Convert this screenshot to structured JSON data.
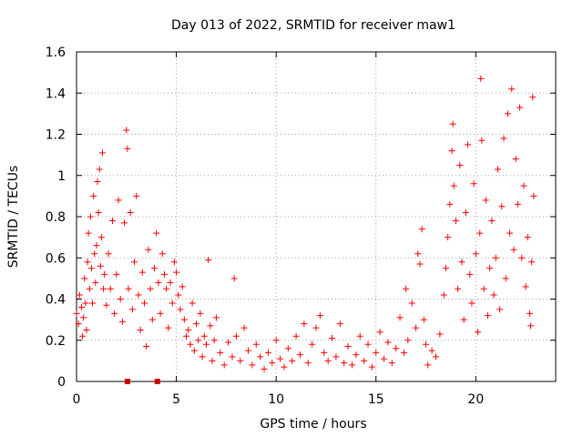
{
  "chart_data": {
    "type": "scatter",
    "title": "Day 013 of 2022, SRMTID for receiver maw1",
    "xlabel": "GPS time / hours",
    "ylabel": "SRMTID / TECUs",
    "xlim": [
      0,
      24
    ],
    "ylim": [
      0,
      1.6
    ],
    "xticks": [
      0,
      5,
      10,
      15,
      20
    ],
    "xtick_labels": [
      "0",
      "5",
      "10",
      "15",
      "20"
    ],
    "yticks": [
      0,
      0.2,
      0.4,
      0.6,
      0.8,
      1,
      1.2,
      1.4,
      1.6
    ],
    "ytick_labels": [
      "0",
      "0.2",
      "0.4",
      "0.6",
      "0.8",
      "1",
      "1.2",
      "1.4",
      "1.6"
    ],
    "grid": true,
    "series": [
      {
        "name": "SRMTID",
        "marker": "plus",
        "color": "#ff0000",
        "points": [
          [
            0.0,
            0.33
          ],
          [
            0.1,
            0.28
          ],
          [
            0.15,
            0.42
          ],
          [
            0.25,
            0.36
          ],
          [
            0.3,
            0.22
          ],
          [
            0.35,
            0.31
          ],
          [
            0.4,
            0.5
          ],
          [
            0.45,
            0.38
          ],
          [
            0.5,
            0.25
          ],
          [
            0.55,
            0.58
          ],
          [
            0.6,
            0.72
          ],
          [
            0.65,
            0.45
          ],
          [
            0.7,
            0.8
          ],
          [
            0.75,
            0.55
          ],
          [
            0.8,
            0.38
          ],
          [
            0.85,
            0.9
          ],
          [
            0.9,
            0.62
          ],
          [
            0.95,
            0.48
          ],
          [
            1.0,
            0.66
          ],
          [
            1.05,
            0.97
          ],
          [
            1.1,
            0.82
          ],
          [
            1.15,
            1.03
          ],
          [
            1.2,
            0.56
          ],
          [
            1.25,
            0.7
          ],
          [
            1.3,
            1.11
          ],
          [
            1.35,
            0.45
          ],
          [
            1.4,
            0.52
          ],
          [
            1.5,
            0.37
          ],
          [
            1.6,
            0.62
          ],
          [
            1.7,
            0.45
          ],
          [
            1.8,
            0.78
          ],
          [
            1.9,
            0.33
          ],
          [
            2.0,
            0.52
          ],
          [
            2.1,
            0.88
          ],
          [
            2.2,
            0.4
          ],
          [
            2.3,
            0.29
          ],
          [
            2.4,
            0.77
          ],
          [
            2.5,
            1.22
          ],
          [
            2.55,
            1.13
          ],
          [
            2.6,
            0.45
          ],
          [
            2.7,
            0.82
          ],
          [
            2.8,
            0.35
          ],
          [
            2.9,
            0.58
          ],
          [
            3.0,
            0.9
          ],
          [
            3.1,
            0.42
          ],
          [
            3.2,
            0.25
          ],
          [
            3.3,
            0.53
          ],
          [
            3.4,
            0.38
          ],
          [
            3.5,
            0.17
          ],
          [
            3.6,
            0.64
          ],
          [
            3.7,
            0.45
          ],
          [
            3.8,
            0.3
          ],
          [
            3.9,
            0.55
          ],
          [
            4.0,
            0.72
          ],
          [
            4.1,
            0.48
          ],
          [
            4.2,
            0.33
          ],
          [
            4.3,
            0.62
          ],
          [
            4.4,
            0.52
          ],
          [
            4.5,
            0.45
          ],
          [
            4.6,
            0.26
          ],
          [
            4.7,
            0.48
          ],
          [
            4.8,
            0.38
          ],
          [
            4.9,
            0.58
          ],
          [
            5.0,
            0.53
          ],
          [
            5.1,
            0.42
          ],
          [
            5.2,
            0.35
          ],
          [
            5.3,
            0.46
          ],
          [
            5.4,
            0.3
          ],
          [
            5.5,
            0.22
          ],
          [
            5.6,
            0.25
          ],
          [
            5.7,
            0.18
          ],
          [
            5.8,
            0.38
          ],
          [
            5.9,
            0.15
          ],
          [
            6.0,
            0.28
          ],
          [
            6.1,
            0.2
          ],
          [
            6.2,
            0.33
          ],
          [
            6.3,
            0.12
          ],
          [
            6.4,
            0.22
          ],
          [
            6.5,
            0.18
          ],
          [
            6.6,
            0.59
          ],
          [
            6.7,
            0.27
          ],
          [
            6.8,
            0.1
          ],
          [
            6.9,
            0.2
          ],
          [
            7.0,
            0.31
          ],
          [
            7.2,
            0.14
          ],
          [
            7.4,
            0.08
          ],
          [
            7.6,
            0.19
          ],
          [
            7.8,
            0.12
          ],
          [
            7.9,
            0.5
          ],
          [
            8.0,
            0.22
          ],
          [
            8.2,
            0.1
          ],
          [
            8.4,
            0.26
          ],
          [
            8.6,
            0.15
          ],
          [
            8.8,
            0.08
          ],
          [
            9.0,
            0.18
          ],
          [
            9.2,
            0.12
          ],
          [
            9.4,
            0.06
          ],
          [
            9.6,
            0.14
          ],
          [
            9.8,
            0.09
          ],
          [
            10.0,
            0.2
          ],
          [
            10.2,
            0.11
          ],
          [
            10.4,
            0.07
          ],
          [
            10.6,
            0.16
          ],
          [
            10.8,
            0.1
          ],
          [
            11.0,
            0.22
          ],
          [
            11.2,
            0.13
          ],
          [
            11.4,
            0.28
          ],
          [
            11.6,
            0.09
          ],
          [
            11.8,
            0.18
          ],
          [
            12.0,
            0.26
          ],
          [
            12.2,
            0.32
          ],
          [
            12.4,
            0.14
          ],
          [
            12.6,
            0.1
          ],
          [
            12.8,
            0.21
          ],
          [
            13.0,
            0.12
          ],
          [
            13.2,
            0.28
          ],
          [
            13.4,
            0.09
          ],
          [
            13.6,
            0.17
          ],
          [
            13.8,
            0.08
          ],
          [
            14.0,
            0.13
          ],
          [
            14.2,
            0.22
          ],
          [
            14.4,
            0.1
          ],
          [
            14.6,
            0.18
          ],
          [
            14.8,
            0.07
          ],
          [
            15.0,
            0.14
          ],
          [
            15.2,
            0.24
          ],
          [
            15.4,
            0.11
          ],
          [
            15.6,
            0.19
          ],
          [
            15.8,
            0.09
          ],
          [
            16.0,
            0.16
          ],
          [
            16.2,
            0.31
          ],
          [
            16.4,
            0.14
          ],
          [
            16.5,
            0.45
          ],
          [
            16.6,
            0.2
          ],
          [
            16.8,
            0.38
          ],
          [
            17.0,
            0.26
          ],
          [
            17.1,
            0.62
          ],
          [
            17.2,
            0.57
          ],
          [
            17.3,
            0.74
          ],
          [
            17.4,
            0.3
          ],
          [
            17.5,
            0.18
          ],
          [
            17.6,
            0.08
          ],
          [
            17.8,
            0.15
          ],
          [
            18.0,
            0.12
          ],
          [
            18.2,
            0.23
          ],
          [
            18.4,
            0.42
          ],
          [
            18.5,
            0.55
          ],
          [
            18.6,
            0.7
          ],
          [
            18.7,
            0.86
          ],
          [
            18.8,
            1.12
          ],
          [
            18.85,
            1.25
          ],
          [
            18.9,
            0.95
          ],
          [
            19.0,
            0.78
          ],
          [
            19.1,
            0.45
          ],
          [
            19.2,
            1.05
          ],
          [
            19.3,
            0.58
          ],
          [
            19.4,
            0.3
          ],
          [
            19.5,
            0.82
          ],
          [
            19.6,
            1.15
          ],
          [
            19.7,
            0.52
          ],
          [
            19.8,
            0.38
          ],
          [
            19.9,
            0.96
          ],
          [
            20.0,
            0.62
          ],
          [
            20.1,
            0.24
          ],
          [
            20.2,
            0.72
          ],
          [
            20.25,
            1.47
          ],
          [
            20.3,
            1.17
          ],
          [
            20.4,
            0.45
          ],
          [
            20.5,
            0.88
          ],
          [
            20.6,
            0.32
          ],
          [
            20.7,
            0.55
          ],
          [
            20.8,
            0.78
          ],
          [
            20.9,
            0.42
          ],
          [
            21.0,
            0.6
          ],
          [
            21.1,
            1.03
          ],
          [
            21.2,
            0.35
          ],
          [
            21.3,
            0.85
          ],
          [
            21.4,
            1.18
          ],
          [
            21.5,
            0.5
          ],
          [
            21.6,
            1.3
          ],
          [
            21.7,
            0.72
          ],
          [
            21.8,
            1.42
          ],
          [
            21.9,
            0.64
          ],
          [
            22.0,
            1.08
          ],
          [
            22.1,
            0.86
          ],
          [
            22.2,
            1.33
          ],
          [
            22.3,
            0.6
          ],
          [
            22.4,
            0.95
          ],
          [
            22.5,
            0.46
          ],
          [
            22.6,
            0.7
          ],
          [
            22.7,
            0.33
          ],
          [
            22.75,
            0.27
          ],
          [
            22.8,
            0.58
          ],
          [
            22.85,
            1.38
          ],
          [
            22.9,
            0.9
          ]
        ]
      },
      {
        "name": "data-gap markers",
        "marker": "square",
        "color": "#cc0000",
        "points": [
          [
            2.55,
            0.0
          ],
          [
            4.05,
            0.0
          ]
        ]
      }
    ]
  }
}
